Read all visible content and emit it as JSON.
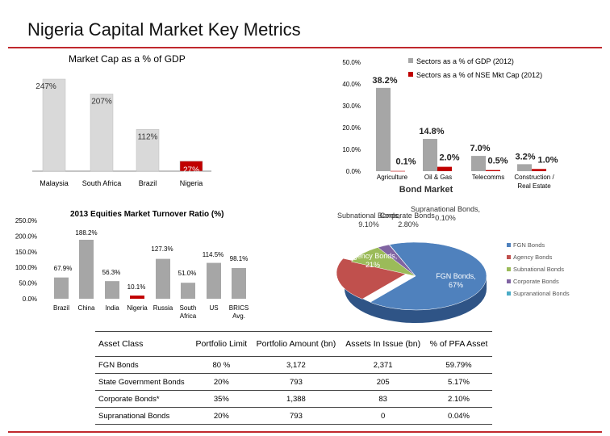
{
  "page": {
    "title": "Nigeria Capital Market Key Metrics"
  },
  "chart_data": [
    {
      "type": "bar",
      "title": "Market Cap as a % of GDP",
      "categories": [
        "Malaysia",
        "South Africa",
        "Brazil",
        "Nigeria"
      ],
      "values": [
        247,
        207,
        112,
        27
      ],
      "data_labels": [
        "247%",
        "207%",
        "112%",
        "27%"
      ],
      "colors": [
        "#d9d9d9",
        "#d9d9d9",
        "#d9d9d9",
        "#c00000"
      ],
      "ylim": [
        0,
        260
      ]
    },
    {
      "type": "bar",
      "categories": [
        "Agriculture",
        "Oil & Gas",
        "Telecomms",
        "Construction / Real Estate"
      ],
      "series": [
        {
          "name": "Sectors as a % of GDP (2012)",
          "values": [
            38.2,
            14.8,
            7.0,
            3.2
          ],
          "labels": [
            "38.2%",
            "14.8%",
            "7.0%",
            "3.2%"
          ],
          "color": "#a6a6a6"
        },
        {
          "name": "Sectors as a % of NSE Mkt Cap (2012)",
          "values": [
            0.1,
            2.0,
            0.5,
            1.0
          ],
          "labels": [
            "0.1%",
            "2.0%",
            "0.5%",
            "1.0%"
          ],
          "color": "#c00000"
        }
      ],
      "yticks": [
        "50.0%",
        "40.0%",
        "30.0%",
        "20.0%",
        "10.0%",
        "0.0%"
      ],
      "ylim": [
        0,
        50
      ],
      "legend": "top-right"
    },
    {
      "type": "bar",
      "title": "2013 Equities Market Turnover Ratio (%)",
      "categories": [
        "Brazil",
        "China",
        "India",
        "Nigeria",
        "Russia",
        "South Africa",
        "US",
        "BRICS Avg."
      ],
      "values": [
        67.9,
        188.2,
        56.3,
        10.1,
        127.3,
        51.0,
        114.5,
        98.1
      ],
      "data_labels": [
        "67.9%",
        "188.2%",
        "56.3%",
        "10.1%",
        "127.3%",
        "51.0%",
        "114.5%",
        "98.1%"
      ],
      "colors": [
        "#a6a6a6",
        "#a6a6a6",
        "#a6a6a6",
        "#c00000",
        "#a6a6a6",
        "#a6a6a6",
        "#a6a6a6",
        "#a6a6a6"
      ],
      "yticks": [
        "250.0%",
        "200.0%",
        "150.0%",
        "100.0%",
        "50.0%",
        "0.0%"
      ],
      "ylim": [
        0,
        250
      ]
    },
    {
      "type": "pie",
      "title": "Bond Market",
      "slices": [
        {
          "name": "FGN Bonds",
          "value": 67,
          "label": "FGN Bonds, 67%",
          "color": "#4f81bd"
        },
        {
          "name": "Agency Bonds",
          "value": 21,
          "label": "Agency Bonds, 21%",
          "color": "#c0504d"
        },
        {
          "name": "Subnational Bonds",
          "value": 9.1,
          "label": "Subnational Bonds, 9.10%",
          "color": "#9bbb59"
        },
        {
          "name": "Corporate Bonds",
          "value": 2.8,
          "label": "Corporate Bonds, 2.80%",
          "color": "#8064a2"
        },
        {
          "name": "Supranational Bonds",
          "value": 0.1,
          "label": "Supranational Bonds, 0.10%",
          "color": "#4bacc6"
        }
      ],
      "legend": "right"
    },
    {
      "type": "table",
      "columns": [
        "Asset Class",
        "Portfolio Limit",
        "Portfolio Amount (bn)",
        "Assets In Issue (bn)",
        "% of PFA Asset"
      ],
      "rows": [
        [
          "FGN Bonds",
          "80 %",
          "3,172",
          "2,371",
          "59.79%"
        ],
        [
          "State Government Bonds",
          "20%",
          "793",
          "205",
          "5.17%"
        ],
        [
          "Corporate Bonds*",
          "35%",
          "1,388",
          "83",
          "2.10%"
        ],
        [
          "Supranational Bonds",
          "20%",
          "793",
          "0",
          "0.04%"
        ]
      ]
    }
  ]
}
